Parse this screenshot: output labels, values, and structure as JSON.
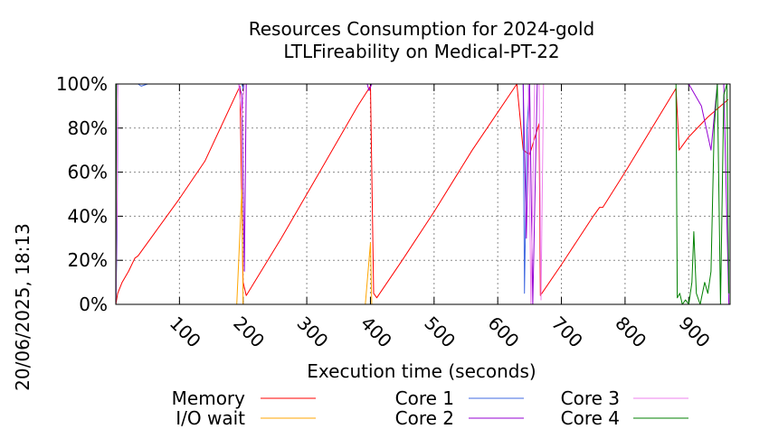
{
  "chart_data": {
    "type": "line",
    "title": [
      "Resources Consumption for 2024-gold",
      "LTLFireability on Medical-PT-22"
    ],
    "xlabel": "Execution time (seconds)",
    "ylabel": "",
    "xlim": [
      0,
      965
    ],
    "ylim": [
      0,
      100
    ],
    "x_ticks": [
      100,
      200,
      300,
      400,
      500,
      600,
      700,
      800,
      900
    ],
    "y_ticks": [
      0,
      20,
      40,
      60,
      80,
      100
    ],
    "y_tick_labels": [
      "0%",
      "20%",
      "40%",
      "60%",
      "80%",
      "100%"
    ],
    "timestamp": "20/06/2025, 18:13",
    "grid": true,
    "legend_position": "bottom",
    "series": [
      {
        "name": "Memory",
        "color": "#ff0000",
        "points": [
          [
            0,
            0
          ],
          [
            3,
            5
          ],
          [
            10,
            10
          ],
          [
            20,
            15
          ],
          [
            30,
            21
          ],
          [
            35,
            22
          ],
          [
            60,
            32
          ],
          [
            100,
            48
          ],
          [
            140,
            65
          ],
          [
            195,
            99
          ],
          [
            200,
            10
          ],
          [
            205,
            4
          ],
          [
            260,
            30
          ],
          [
            320,
            60
          ],
          [
            380,
            90
          ],
          [
            400,
            99
          ],
          [
            405,
            5
          ],
          [
            410,
            3
          ],
          [
            450,
            20
          ],
          [
            500,
            42
          ],
          [
            560,
            70
          ],
          [
            630,
            100
          ],
          [
            640,
            70
          ],
          [
            650,
            68
          ],
          [
            665,
            82
          ],
          [
            667,
            4
          ],
          [
            700,
            18
          ],
          [
            750,
            40
          ],
          [
            760,
            44
          ],
          [
            765,
            44
          ],
          [
            800,
            60
          ],
          [
            880,
            98
          ],
          [
            885,
            70
          ],
          [
            900,
            76
          ],
          [
            930,
            85
          ],
          [
            962,
            93
          ]
        ]
      },
      {
        "name": "I/O wait",
        "color": "#ffa500",
        "points": [
          [
            0,
            0
          ],
          [
            190,
            0
          ],
          [
            198,
            52
          ],
          [
            200,
            0
          ],
          [
            392,
            0
          ],
          [
            400,
            28
          ],
          [
            402,
            0
          ],
          [
            660,
            0
          ],
          [
            963,
            0
          ]
        ]
      },
      {
        "name": "Core 1",
        "color": "#4169e1",
        "points": [
          [
            0,
            0
          ],
          [
            2,
            30
          ],
          [
            3,
            100
          ],
          [
            35,
            100
          ],
          [
            40,
            99
          ],
          [
            50,
            100
          ],
          [
            198,
            100
          ],
          [
            200,
            98
          ],
          [
            202,
            100
          ],
          [
            640,
            100
          ],
          [
            642,
            5
          ],
          [
            646,
            80
          ],
          [
            650,
            100
          ],
          [
            660,
            100
          ],
          [
            880,
            100
          ],
          [
            960,
            100
          ]
        ]
      },
      {
        "name": "Core 2",
        "color": "#9400d3",
        "points": [
          [
            0,
            0
          ],
          [
            2,
            40
          ],
          [
            3,
            100
          ],
          [
            193,
            100
          ],
          [
            198,
            95
          ],
          [
            202,
            15
          ],
          [
            205,
            100
          ],
          [
            395,
            100
          ],
          [
            398,
            97
          ],
          [
            402,
            100
          ],
          [
            640,
            100
          ],
          [
            645,
            30
          ],
          [
            650,
            100
          ],
          [
            655,
            0
          ],
          [
            662,
            100
          ],
          [
            880,
            100
          ],
          [
            900,
            100
          ],
          [
            920,
            90
          ],
          [
            935,
            70
          ],
          [
            945,
            100
          ],
          [
            955,
            100
          ],
          [
            963,
            0
          ]
        ]
      },
      {
        "name": "Core 3",
        "color": "#ee82ee",
        "points": [
          [
            0,
            0
          ],
          [
            2,
            50
          ],
          [
            3,
            100
          ],
          [
            193,
            100
          ],
          [
            198,
            85
          ],
          [
            202,
            100
          ],
          [
            640,
            100
          ],
          [
            648,
            100
          ],
          [
            652,
            0
          ],
          [
            658,
            100
          ],
          [
            665,
            100
          ],
          [
            668,
            2
          ],
          [
            672,
            100
          ],
          [
            880,
            100
          ],
          [
            958,
            100
          ],
          [
            963,
            100
          ]
        ]
      },
      {
        "name": "Core 4",
        "color": "#008000",
        "points": [
          [
            0,
            0
          ],
          [
            1,
            100
          ],
          [
            880,
            100
          ],
          [
            882,
            3
          ],
          [
            886,
            5
          ],
          [
            890,
            0
          ],
          [
            895,
            2
          ],
          [
            900,
            0
          ],
          [
            905,
            10
          ],
          [
            908,
            33
          ],
          [
            912,
            5
          ],
          [
            918,
            0
          ],
          [
            925,
            10
          ],
          [
            930,
            5
          ],
          [
            935,
            15
          ],
          [
            940,
            80
          ],
          [
            945,
            100
          ],
          [
            950,
            0
          ],
          [
            955,
            95
          ],
          [
            960,
            100
          ],
          [
            963,
            5
          ]
        ]
      }
    ]
  }
}
